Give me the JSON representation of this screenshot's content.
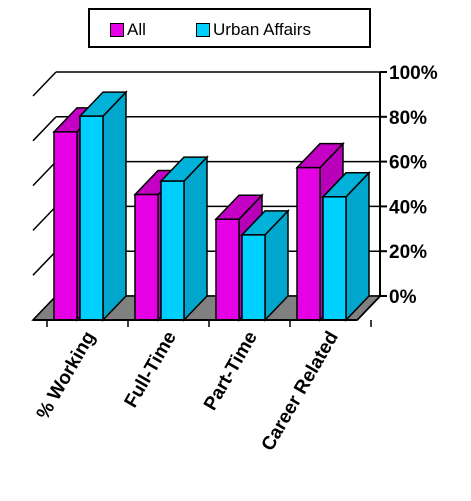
{
  "chart_data": {
    "type": "bar",
    "categories": [
      "% Working",
      "Full-Time",
      "Part-Time",
      "Career Related"
    ],
    "series": [
      {
        "name": "All",
        "values": [
          84,
          56,
          45,
          68
        ]
      },
      {
        "name": "Urban Affairs",
        "values": [
          91,
          62,
          38,
          55
        ]
      }
    ],
    "ylim": [
      0,
      100
    ],
    "yticks": [
      "0%",
      "20%",
      "40%",
      "60%",
      "80%",
      "100%"
    ],
    "legend_position": "top",
    "grid": true,
    "style": "3d"
  },
  "colors": {
    "all": "#e600e6",
    "urban_affairs": "#00d0ff",
    "floor": "#808080"
  }
}
